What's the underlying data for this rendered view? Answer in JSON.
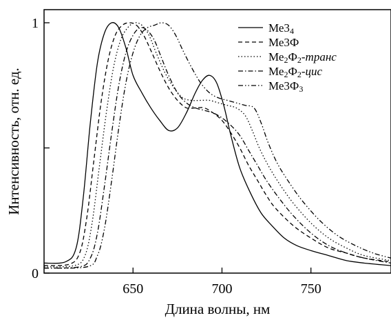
{
  "chart_data": {
    "type": "line",
    "title": "",
    "xlabel": "Длина волны, нм",
    "ylabel": "Интенсивность, отн. ед.",
    "xlim": [
      600,
      795
    ],
    "ylim": [
      0,
      1.02
    ],
    "x_ticks": [
      650,
      700,
      750
    ],
    "x_tick_labels": [
      "650",
      "700",
      "750"
    ],
    "y_ticks": [
      0,
      0.5,
      1
    ],
    "y_tick_labels": [
      "0",
      "",
      "1"
    ],
    "grid": false,
    "legend_position": "top-right",
    "series": [
      {
        "name": "Ме34",
        "legend": [
          {
            "t": "Ме3"
          },
          {
            "t": "4",
            "sub": true
          }
        ],
        "style": "solid",
        "x": [
          600,
          612,
          618,
          622,
          626,
          630,
          634,
          638,
          642,
          646,
          650,
          655,
          660,
          665,
          670,
          675,
          680,
          685,
          689,
          693,
          697,
          701,
          705,
          710,
          716,
          722,
          728,
          735,
          742,
          750,
          760,
          770,
          780,
          795
        ],
        "y": [
          0.04,
          0.045,
          0.1,
          0.3,
          0.6,
          0.84,
          0.96,
          1.0,
          0.98,
          0.9,
          0.79,
          0.72,
          0.66,
          0.61,
          0.57,
          0.58,
          0.64,
          0.72,
          0.77,
          0.79,
          0.76,
          0.67,
          0.55,
          0.42,
          0.32,
          0.24,
          0.19,
          0.14,
          0.11,
          0.09,
          0.07,
          0.05,
          0.04,
          0.03
        ]
      },
      {
        "name": "Ме3Ф",
        "legend": [
          {
            "t": "Ме3Ф"
          }
        ],
        "style": "dashed",
        "x": [
          600,
          614,
          620,
          624,
          628,
          632,
          636,
          640,
          644,
          648,
          652,
          656,
          660,
          665,
          670,
          675,
          680,
          685,
          690,
          695,
          700,
          705,
          710,
          715,
          720,
          725,
          730,
          740,
          750,
          760,
          770,
          780,
          795
        ],
        "y": [
          0.03,
          0.035,
          0.08,
          0.22,
          0.45,
          0.68,
          0.85,
          0.95,
          0.99,
          1.0,
          0.99,
          0.95,
          0.89,
          0.81,
          0.74,
          0.69,
          0.66,
          0.66,
          0.66,
          0.64,
          0.61,
          0.56,
          0.5,
          0.43,
          0.37,
          0.31,
          0.26,
          0.19,
          0.14,
          0.1,
          0.08,
          0.06,
          0.045
        ]
      },
      {
        "name": "Ме2Ф2-транс",
        "legend": [
          {
            "t": "Ме"
          },
          {
            "t": "2",
            "sub": true
          },
          {
            "t": "Ф"
          },
          {
            "t": "2",
            "sub": true
          },
          {
            "t": "-"
          },
          {
            "t": "транс",
            "italic": true
          }
        ],
        "style": "dotted",
        "x": [
          600,
          617,
          623,
          627,
          631,
          635,
          639,
          643,
          647,
          651,
          655,
          659,
          663,
          668,
          673,
          678,
          683,
          688,
          693,
          698,
          703,
          708,
          713,
          717,
          721,
          726,
          732,
          740,
          750,
          760,
          770,
          780,
          795
        ],
        "y": [
          0.025,
          0.03,
          0.07,
          0.2,
          0.42,
          0.64,
          0.82,
          0.93,
          0.98,
          1.0,
          0.99,
          0.95,
          0.88,
          0.8,
          0.74,
          0.7,
          0.69,
          0.69,
          0.69,
          0.68,
          0.67,
          0.66,
          0.63,
          0.57,
          0.5,
          0.43,
          0.36,
          0.28,
          0.2,
          0.14,
          0.1,
          0.07,
          0.05
        ]
      },
      {
        "name": "Ме2Ф2-цис",
        "legend": [
          {
            "t": "Ме"
          },
          {
            "t": "2",
            "sub": true
          },
          {
            "t": "Ф"
          },
          {
            "t": "2",
            "sub": true
          },
          {
            "t": "-"
          },
          {
            "t": "цис",
            "italic": true
          }
        ],
        "style": "dashdot",
        "x": [
          600,
          620,
          626,
          630,
          634,
          638,
          642,
          646,
          650,
          654,
          658,
          662,
          666,
          670,
          675,
          680,
          685,
          690,
          695,
          700,
          705,
          710,
          715,
          720,
          725,
          732,
          740,
          750,
          760,
          770,
          780,
          795
        ],
        "y": [
          0.02,
          0.025,
          0.06,
          0.16,
          0.35,
          0.56,
          0.75,
          0.88,
          0.95,
          0.98,
          0.97,
          0.93,
          0.86,
          0.79,
          0.72,
          0.68,
          0.66,
          0.65,
          0.64,
          0.62,
          0.59,
          0.55,
          0.49,
          0.43,
          0.37,
          0.3,
          0.23,
          0.16,
          0.11,
          0.08,
          0.06,
          0.04
        ]
      },
      {
        "name": "Ме3Ф3",
        "legend": [
          {
            "t": "Ме3Ф"
          },
          {
            "t": "3",
            "sub": true
          }
        ],
        "style": "dashdotdot",
        "x": [
          600,
          624,
          630,
          634,
          638,
          642,
          646,
          650,
          654,
          658,
          662,
          666,
          670,
          674,
          678,
          683,
          688,
          693,
          698,
          703,
          708,
          713,
          718,
          722,
          726,
          731,
          737,
          745,
          755,
          765,
          775,
          785,
          795
        ],
        "y": [
          0.02,
          0.025,
          0.07,
          0.18,
          0.37,
          0.58,
          0.76,
          0.88,
          0.95,
          0.98,
          0.99,
          1.0,
          0.99,
          0.95,
          0.89,
          0.82,
          0.76,
          0.72,
          0.7,
          0.69,
          0.68,
          0.67,
          0.66,
          0.6,
          0.52,
          0.44,
          0.37,
          0.29,
          0.21,
          0.15,
          0.11,
          0.08,
          0.06
        ]
      }
    ]
  }
}
